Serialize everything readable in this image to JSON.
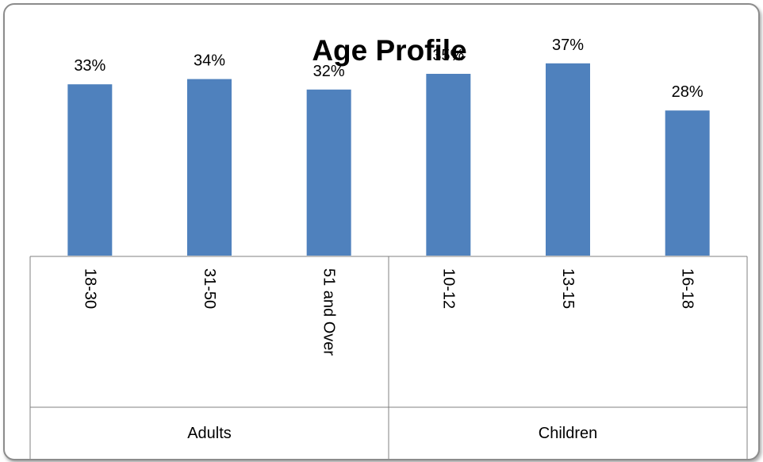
{
  "chart_data": {
    "type": "bar",
    "title": "Age Profile",
    "categories": [
      "18-30",
      "31-50",
      "51 and Over",
      "10-12",
      "13-15",
      "16-18"
    ],
    "groups": [
      {
        "name": "Adults",
        "categories": [
          "18-30",
          "31-50",
          "51 and Over"
        ]
      },
      {
        "name": "Children",
        "categories": [
          "10-12",
          "13-15",
          "16-18"
        ]
      }
    ],
    "values": [
      33,
      34,
      32,
      35,
      37,
      28
    ],
    "data_labels": [
      "33%",
      "34%",
      "32%",
      "35%",
      "37%",
      "28%"
    ],
    "unit": "%",
    "ylim": [
      0,
      100
    ],
    "grid": false,
    "legend": "none",
    "xlabel": "",
    "ylabel": "",
    "colors": {
      "bar": "#4f81bd",
      "bar_edge": "#ffffff",
      "axis": "#808080"
    }
  }
}
